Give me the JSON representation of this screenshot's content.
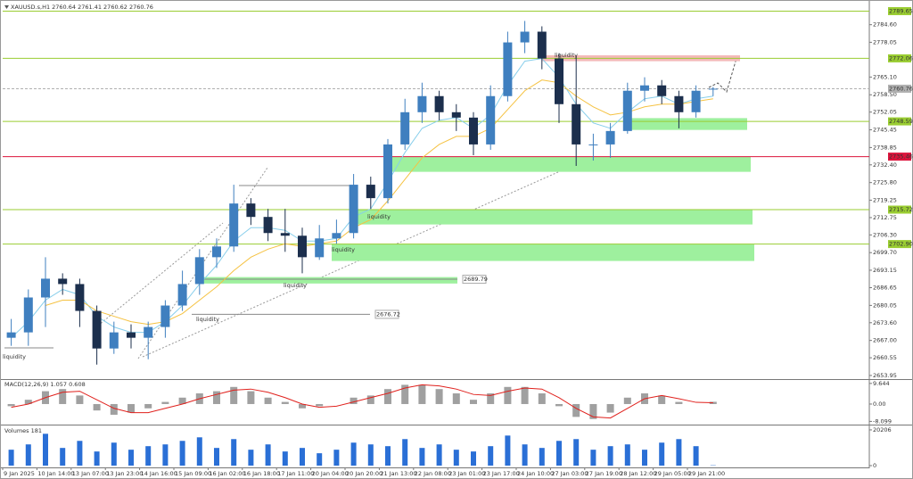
{
  "chart_data": [
    {
      "type": "candlestick",
      "title": "XAUUSD.s,H1  2760.64 2761.41 2760.62 2760.76",
      "categories": [
        "9 Jan 2025",
        null,
        "10 Jan 14:00",
        null,
        "13 Jan 07:00",
        null,
        "13 Jan 23:00",
        null,
        "14 Jan 16:00",
        null,
        "15 Jan 09:00",
        null,
        "16 Jan 02:00",
        null,
        "16 Jan 18:00",
        null,
        "17 Jan 11:00",
        null,
        "20 Jan 04:00",
        null,
        "20 Jan 20:00",
        null,
        "21 Jan 13:00",
        null,
        "22 Jan 08:00",
        null,
        "23 Jan 01:00",
        null,
        "23 Jan 17:00",
        null,
        "24 Jan 10:00",
        null,
        "27 Jan 03:00",
        null,
        "27 Jan 19:00",
        null,
        "28 Jan 12:00",
        null,
        "29 Jan 05:00",
        null,
        "29 Jan 21:00",
        null
      ],
      "open": [
        2668,
        2670,
        2683,
        2690,
        2688,
        2678,
        2664,
        2670,
        2668,
        2672,
        2680,
        2688,
        2698,
        2702,
        2718,
        2713,
        2707,
        2706,
        2698,
        2705,
        2707,
        2725,
        2720,
        2740,
        2752,
        2758,
        2752,
        2750,
        2740,
        2758,
        2778,
        2782,
        2772,
        2755,
        2740,
        2740,
        2745,
        2760,
        2762,
        2758,
        2752,
        2760.64
      ],
      "high": [
        2675,
        2686,
        2698,
        2692,
        2690,
        2680,
        2674,
        2673,
        2674,
        2682,
        2693,
        2701,
        2705,
        2725,
        2720,
        2716,
        2716,
        2709,
        2710,
        2712,
        2729,
        2728,
        2742,
        2757,
        2763,
        2760,
        2755,
        2752,
        2762,
        2782,
        2786,
        2784,
        2774,
        2773,
        2744,
        2748,
        2763,
        2765,
        2764,
        2760,
        2762,
        2761.41
      ],
      "low": [
        2665,
        2665,
        2672,
        2684,
        2672,
        2658,
        2662,
        2664,
        2660,
        2668,
        2678,
        2684,
        2694,
        2700,
        2710,
        2704,
        2700,
        2692,
        2697,
        2703,
        2705,
        2716,
        2718,
        2738,
        2748,
        2749,
        2745,
        2736,
        2738,
        2756,
        2774,
        2768,
        2748,
        2732,
        2734,
        2735,
        2744,
        2756,
        2755,
        2746,
        2750,
        2758
      ],
      "close": [
        2670,
        2683,
        2690,
        2688,
        2678,
        2664,
        2670,
        2668,
        2672,
        2680,
        2688,
        2698,
        2702,
        2718,
        2713,
        2707,
        2706,
        2698,
        2705,
        2707,
        2725,
        2720,
        2740,
        2752,
        2758,
        2752,
        2750,
        2740,
        2758,
        2778,
        2782,
        2772,
        2755,
        2740,
        2740,
        2745,
        2760,
        2762,
        2758,
        2752,
        2760,
        2760.76
      ],
      "up_color": "#3f7fbf",
      "down_color": "#1c2f4d",
      "overlays": [
        {
          "color": "#87ceeb",
          "values": [
            2668,
            2674,
            2682,
            2686,
            2684,
            2676,
            2672,
            2670,
            2670,
            2674,
            2680,
            2688,
            2695,
            2704,
            2709,
            2709,
            2708,
            2704,
            2704,
            2705,
            2713,
            2716,
            2726,
            2737,
            2746,
            2749,
            2750,
            2746,
            2751,
            2762,
            2771,
            2772,
            2765,
            2755,
            2748,
            2746,
            2752,
            2757,
            2758,
            2755,
            2757,
            2758
          ]
        },
        {
          "color": "#f5c242",
          "values": [
            null,
            null,
            2680,
            2682,
            2682,
            2678,
            2676,
            2674,
            2673,
            2674,
            2677,
            2682,
            2687,
            2693,
            2698,
            2701,
            2703,
            2702,
            2703,
            2704,
            2709,
            2712,
            2719,
            2727,
            2735,
            2740,
            2743,
            2743,
            2746,
            2753,
            2760,
            2764,
            2763,
            2758,
            2754,
            2751,
            2752,
            2754,
            2755,
            2755,
            2756,
            2757
          ]
        }
      ],
      "ylim": [
        2652.6,
        2792.8
      ],
      "yticks": [
        {
          "value": 2784.6,
          "label": "2784.60"
        },
        {
          "value": 2778.05,
          "label": "2778.05"
        },
        {
          "value": 2765.1,
          "label": "2765.10"
        },
        {
          "value": 2758.5,
          "label": "2758.50"
        },
        {
          "value": 2752.05,
          "label": "2752.05"
        },
        2745.45,
        2738.85,
        {
          "value": 2732.4,
          "label": "2732.40"
        },
        {
          "value": 2725.8,
          "label": "2725.80"
        },
        2719.25,
        2712.75,
        {
          "value": 2706.3,
          "label": "2706.30"
        },
        {
          "value": 2699.7,
          "label": "2699.70"
        },
        2693.15,
        2686.65,
        {
          "value": 2680.05,
          "label": "2680.05"
        },
        {
          "value": 2673.6,
          "label": "2673.60"
        },
        {
          "value": 2667,
          "label": "2667.00"
        },
        2660.55,
        2653.95
      ],
      "levels": [
        {
          "value": 2789.65,
          "color": "#9acd32"
        },
        {
          "value": 2772.06,
          "color": "#9acd32"
        },
        {
          "value": 2760.76,
          "color": "#b0b0b0"
        },
        {
          "value": 2748.59,
          "color": "#9acd32"
        },
        {
          "value": 2735.46,
          "color": "#dc143c"
        },
        {
          "value": 2715.72,
          "color": "#9acd32"
        },
        {
          "value": 2702.9,
          "label": "2702.90",
          "color": "#9acd32"
        }
      ],
      "markers": [
        {
          "value": 2689.79
        },
        {
          "value": 2676.72
        }
      ],
      "zones": [
        {
          "from": 2771,
          "to": 2773.2,
          "color": "#f4b9b9"
        },
        {
          "from": 2745.4,
          "to": 2749.8,
          "color": "#9ef09e"
        },
        {
          "from": 2729.8,
          "to": 2735.4,
          "color": "#9ef09e"
        },
        {
          "from": 2710.2,
          "to": 2715.7,
          "color": "#9ef09e"
        },
        {
          "from": 2696.6,
          "to": 2702.9,
          "color": "#9ef09e"
        },
        {
          "from": 2688.2,
          "to": 2690.6,
          "color": "#9ef09e"
        }
      ],
      "annotations": [
        "liquidity",
        "liquidity",
        "liquidity",
        "liquidity",
        "liquidity",
        "liquidity"
      ]
    },
    {
      "type": "macd",
      "title": "MACD(12,26,9) 1.057 0.608",
      "color": "#a0a0a0",
      "signal_color": "#e0201c",
      "values": [
        -1,
        2,
        6,
        7,
        4,
        -3,
        -5,
        -4,
        -2,
        1,
        3,
        5,
        6,
        8,
        6,
        3,
        1,
        -2,
        -1,
        0,
        3,
        4,
        7,
        9,
        9,
        7,
        5,
        2,
        5,
        8,
        8,
        5,
        -1,
        -6,
        -7,
        -4,
        3,
        5,
        4,
        1,
        0,
        1.057
      ],
      "signal": [
        -1.5,
        0,
        3,
        5.5,
        6,
        2,
        -2,
        -4,
        -4,
        -2,
        0,
        2.5,
        4.5,
        6.5,
        7,
        5.5,
        3,
        0,
        -1.5,
        -1,
        1,
        3,
        5,
        7.5,
        9,
        8.5,
        7,
        4.5,
        4,
        6,
        7.5,
        7,
        3,
        -2,
        -6,
        -6.5,
        -2,
        2.5,
        4,
        2.5,
        0.8,
        0.608
      ],
      "ylim": [
        -9.6,
        11.25
      ],
      "yticks": [
        9.644,
        {
          "value": 0,
          "label": "0.00"
        },
        -8.099
      ]
    },
    {
      "type": "bar",
      "title": "Volumes 181",
      "color": "#2a6fd6",
      "values": [
        9000,
        12000,
        18000,
        10000,
        14000,
        8000,
        13000,
        9000,
        11000,
        12000,
        14000,
        16000,
        10000,
        15000,
        9000,
        12000,
        8000,
        10000,
        7000,
        9000,
        13000,
        12000,
        11000,
        15000,
        10000,
        12000,
        9000,
        8000,
        11000,
        17000,
        12000,
        10000,
        14000,
        15000,
        9000,
        11000,
        12000,
        9000,
        13000,
        15000,
        11000,
        181
      ],
      "ylim": [
        0,
        22700
      ],
      "yticks": [
        20206,
        0
      ]
    }
  ]
}
